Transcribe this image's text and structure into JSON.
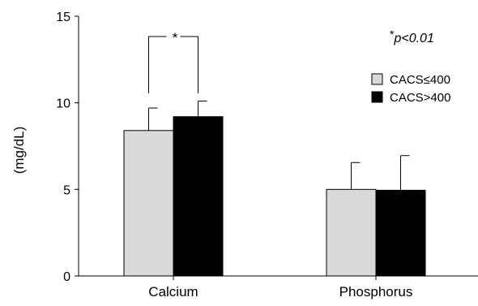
{
  "chart_data": {
    "type": "bar",
    "title": "",
    "xlabel": "",
    "ylabel": "(mg/dL)",
    "ylim": [
      0,
      15
    ],
    "yticks": [
      0,
      5,
      10,
      15
    ],
    "grid": false,
    "legend_position": "top-right",
    "categories": [
      "Calcium",
      "Phosphorus"
    ],
    "series": [
      {
        "name": "CACS≤400",
        "color": "#d9d9d9",
        "values": [
          8.4,
          5.0
        ],
        "error": [
          1.3,
          1.55
        ]
      },
      {
        "name": "CACS>400",
        "color": "#000000",
        "values": [
          9.2,
          4.95
        ],
        "error": [
          0.9,
          2.0
        ]
      }
    ],
    "annotations": {
      "significance_marker": "*",
      "significance_category": "Calcium",
      "note_star": "*",
      "note_text": "p<0.01"
    }
  }
}
